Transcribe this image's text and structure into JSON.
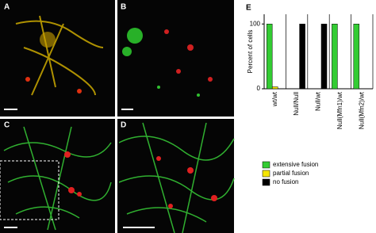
{
  "panels": [
    {
      "label": "A"
    },
    {
      "label": "B"
    },
    {
      "label": "C"
    },
    {
      "label": "D"
    },
    {
      "label": "E"
    }
  ],
  "chart_data": {
    "type": "bar",
    "ylabel": "Percent of cells",
    "categories": [
      "wt/wt",
      "Null/Null",
      "Null/wt",
      "Null(Mfn1)/wt",
      "Null(Mfn2)/wt"
    ],
    "series": [
      {
        "name": "extensive fusion",
        "color": "#33cc33",
        "values": [
          100,
          0,
          0,
          100,
          100
        ]
      },
      {
        "name": "partial fusion",
        "color": "#f5e600",
        "values": [
          3,
          0,
          0,
          0,
          0
        ]
      },
      {
        "name": "no fusion",
        "color": "#000000",
        "values": [
          0,
          100,
          100,
          0,
          0
        ]
      }
    ],
    "ylim": [
      0,
      115
    ],
    "yticks": [
      0,
      100
    ]
  }
}
